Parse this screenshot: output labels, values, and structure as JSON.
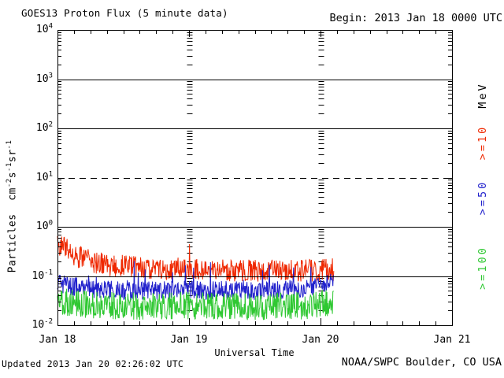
{
  "header": {
    "title": "GOES13 Proton Flux (5 minute data)",
    "begin": "Begin: 2013 Jan 18 0000 UTC"
  },
  "footer": {
    "updated": "Updated 2013 Jan 20 02:26:02 UTC",
    "source": "NOAA/SWPC Boulder, CO USA"
  },
  "axes": {
    "x": {
      "label": "Universal Time",
      "ticks": [
        "Jan 18",
        "Jan 19",
        "Jan 20",
        "Jan 21"
      ]
    },
    "y": {
      "label_segments": [
        "Particles  cm",
        "-2",
        "s",
        "-1",
        "sr",
        "-1"
      ],
      "ticks": [
        {
          "base": "10",
          "exp": "4"
        },
        {
          "base": "10",
          "exp": "3"
        },
        {
          "base": "10",
          "exp": "2"
        },
        {
          "base": "10",
          "exp": "1"
        },
        {
          "base": "10",
          "exp": "0"
        },
        {
          "base": "10",
          "exp": "-1"
        },
        {
          "base": "10",
          "exp": "-2"
        }
      ]
    }
  },
  "right_legend": {
    "unit": "MeV",
    "unit_color": "#000000",
    "items": [
      {
        "label": ">=10",
        "color": "#ef2800"
      },
      {
        "label": ">=50",
        "color": "#2121cc"
      },
      {
        "label": ">=100",
        "color": "#2fc832"
      }
    ]
  },
  "chart_data": {
    "type": "line",
    "title": "GOES13 Proton Flux (5 minute data)",
    "xlabel": "Universal Time",
    "ylabel": "Particles cm^-2 s^-1 sr^-1",
    "x_tick_labels": [
      "Jan 18",
      "Jan 19",
      "Jan 20",
      "Jan 21"
    ],
    "x_range_hours": [
      0,
      72
    ],
    "x_tick_interval_hours": 24,
    "x_minor_tick_hours": 3,
    "y_scale": "log10",
    "y_range": [
      0.01,
      10000
    ],
    "y_decades": [
      4,
      3,
      2,
      1,
      0,
      -1,
      -2
    ],
    "solid_hline_decades": [
      3,
      2,
      0,
      -1
    ],
    "dashed_hline_decades": [
      1
    ],
    "interior_day_gridlines_hours": [
      24,
      48
    ],
    "sample_interval_minutes": 5,
    "data_end_hour": 50.4,
    "seed": 20130120,
    "series": [
      {
        "name": ">=10 MeV",
        "color": "#ef2800",
        "trend_log10": [
          [
            0,
            -0.35
          ],
          [
            0.8,
            -0.37
          ],
          [
            2,
            -0.5
          ],
          [
            4,
            -0.62
          ],
          [
            6,
            -0.7
          ],
          [
            9,
            -0.77
          ],
          [
            12,
            -0.8
          ],
          [
            16,
            -0.83
          ],
          [
            20,
            -0.85
          ],
          [
            24,
            -0.86
          ],
          [
            28,
            -0.87
          ],
          [
            32,
            -0.88
          ],
          [
            38,
            -0.9
          ],
          [
            44,
            -0.9
          ],
          [
            50.4,
            -0.86
          ]
        ],
        "noise_log10": 0.23,
        "spikes": [
          [
            24.08,
            -0.35
          ]
        ]
      },
      {
        "name": ">=50 MeV",
        "color": "#2121cc",
        "trend_log10": [
          [
            0,
            -1.14
          ],
          [
            2,
            -1.2
          ],
          [
            6,
            -1.26
          ],
          [
            12,
            -1.3
          ],
          [
            24,
            -1.28
          ],
          [
            36,
            -1.3
          ],
          [
            46,
            -1.26
          ],
          [
            50.4,
            -1.12
          ]
        ],
        "noise_log10": 0.19,
        "spike_prob": 0.025,
        "spike_log10": 0.32
      },
      {
        "name": ">=100 MeV",
        "color": "#2fc832",
        "trend_log10": [
          [
            0,
            -1.52
          ],
          [
            6,
            -1.58
          ],
          [
            16,
            -1.62
          ],
          [
            24,
            -1.6
          ],
          [
            36,
            -1.62
          ],
          [
            46,
            -1.6
          ],
          [
            50.4,
            -1.52
          ]
        ],
        "noise_log10": 0.28,
        "floor_log10": -1.9
      }
    ]
  }
}
